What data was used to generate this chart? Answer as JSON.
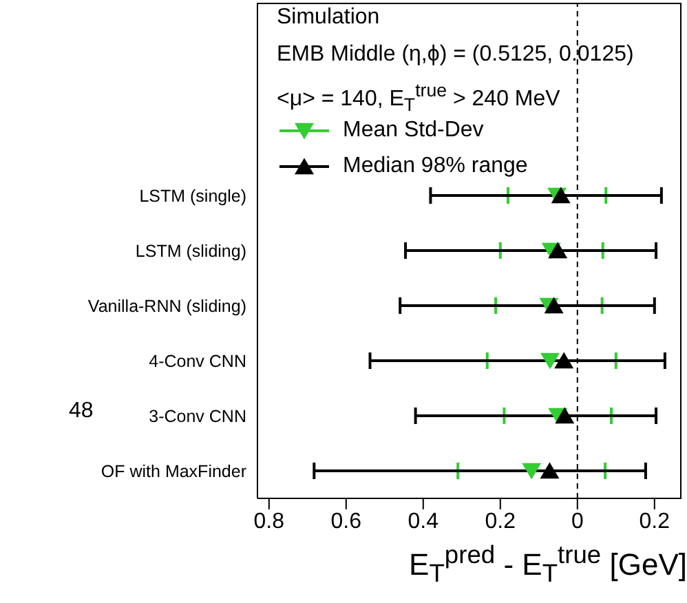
{
  "chart_data": {
    "type": "scatter",
    "orientation": "horizontal",
    "categories": [
      null,
      null,
      null,
      "LSTM (single)",
      "LSTM (sliding)",
      "Vanilla-RNN (sliding)",
      "4-Conv CNN",
      "3-Conv CNN",
      "OF with MaxFinder"
    ],
    "series": [
      {
        "name": "Mean Std-Dev",
        "color": "#33cc33",
        "marker": "triangle",
        "values": [
          null,
          null,
          null,
          -0.053,
          -0.068,
          -0.074,
          -0.071,
          -0.051,
          -0.119
        ],
        "errors": [
          null,
          null,
          null,
          [
            -0.18,
            0.074
          ],
          [
            -0.2,
            0.066
          ],
          [
            -0.212,
            0.064
          ],
          [
            -0.234,
            0.1
          ],
          [
            -0.19,
            0.088
          ],
          [
            -0.31,
            0.072
          ]
        ]
      },
      {
        "name": "Median 98% range",
        "color": "#000000",
        "marker": "triangle",
        "values": [
          null,
          null,
          null,
          -0.043,
          -0.051,
          -0.061,
          -0.035,
          -0.033,
          -0.072
        ],
        "errors": [
          null,
          null,
          null,
          [
            -0.381,
            0.218
          ],
          [
            -0.446,
            0.204
          ],
          [
            -0.46,
            0.2
          ],
          [
            -0.538,
            0.227
          ],
          [
            -0.42,
            0.204
          ],
          [
            -0.683,
            0.177
          ]
        ]
      }
    ],
    "xlim": [
      -0.83,
      0.27
    ],
    "xticks": [
      {
        "value": -0.8,
        "label": "0.8"
      },
      {
        "value": -0.6,
        "label": "0.6"
      },
      {
        "value": -0.4,
        "label": "0.4"
      },
      {
        "value": -0.2,
        "label": "0.2"
      },
      0,
      0.2
    ],
    "xlabel": "E$_{T}$$^{pred}$ - E$_{T}$$^{true}$ [GeV]",
    "ref_lines": [
      {
        "axis": "x",
        "value": 0,
        "color": "#000000",
        "line_style": "dashed"
      }
    ],
    "legend": "top left",
    "grid": false,
    "annotations": [
      "Simulation",
      "EMB Middle (η,ϕ) = (0.5125, 0.0125)",
      "<μ> = 140, E$_{T}$$^{true}$ > 240 MeV",
      "48"
    ]
  }
}
